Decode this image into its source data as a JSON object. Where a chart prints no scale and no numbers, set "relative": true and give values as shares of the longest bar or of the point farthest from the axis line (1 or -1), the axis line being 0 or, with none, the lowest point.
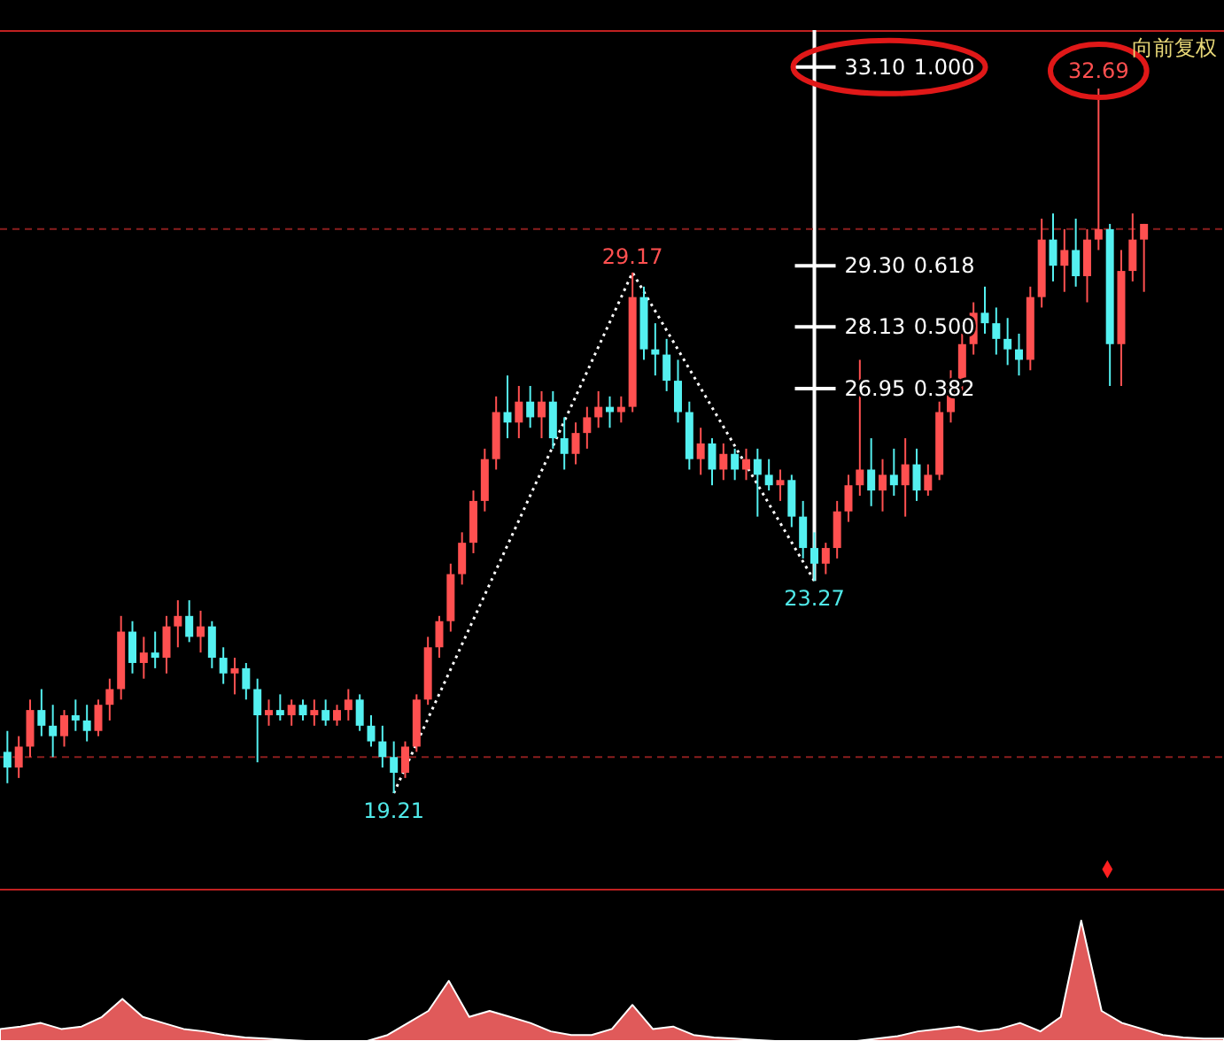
{
  "chart_data": [
    {
      "type": "candlestick",
      "categories": [
        null,
        null,
        null,
        null,
        null,
        null,
        null,
        null,
        null,
        null,
        null,
        null,
        null,
        null,
        null,
        null,
        null,
        null,
        null,
        null,
        null,
        null,
        null,
        null,
        null,
        null,
        null,
        null,
        null,
        null,
        null,
        null,
        null,
        null,
        null,
        null,
        null,
        null,
        null,
        null,
        null,
        null,
        null,
        null,
        null,
        null,
        null,
        null,
        null,
        null,
        null,
        null,
        null,
        null,
        null,
        null,
        null,
        null,
        null,
        null,
        null,
        null,
        null,
        null,
        null,
        null,
        null,
        null,
        null,
        null,
        null,
        null,
        null,
        null,
        null,
        null,
        null,
        null,
        null,
        null,
        null,
        null,
        null,
        null,
        null,
        null,
        null,
        null,
        null,
        null,
        null,
        null,
        null,
        null,
        null,
        null,
        null,
        null,
        null,
        null,
        null
      ],
      "ohlc": [
        [
          20.0,
          20.4,
          19.4,
          19.7
        ],
        [
          19.7,
          20.3,
          19.5,
          20.1
        ],
        [
          20.1,
          21.0,
          19.9,
          20.8
        ],
        [
          20.8,
          21.2,
          20.3,
          20.5
        ],
        [
          20.5,
          20.9,
          19.9,
          20.3
        ],
        [
          20.3,
          20.8,
          20.1,
          20.7
        ],
        [
          20.7,
          21.0,
          20.4,
          20.6
        ],
        [
          20.6,
          20.9,
          20.2,
          20.4
        ],
        [
          20.4,
          21.0,
          20.3,
          20.9
        ],
        [
          20.9,
          21.4,
          20.6,
          21.2
        ],
        [
          21.2,
          22.6,
          21.0,
          22.3
        ],
        [
          22.3,
          22.5,
          21.5,
          21.7
        ],
        [
          21.7,
          22.2,
          21.4,
          21.9
        ],
        [
          21.9,
          22.3,
          21.6,
          21.8
        ],
        [
          21.8,
          22.6,
          21.5,
          22.4
        ],
        [
          22.4,
          22.9,
          22.0,
          22.6
        ],
        [
          22.6,
          22.9,
          22.1,
          22.2
        ],
        [
          22.2,
          22.7,
          21.9,
          22.4
        ],
        [
          22.4,
          22.5,
          21.6,
          21.8
        ],
        [
          21.8,
          22.0,
          21.3,
          21.5
        ],
        [
          21.5,
          21.8,
          21.1,
          21.6
        ],
        [
          21.6,
          21.7,
          21.0,
          21.2
        ],
        [
          21.2,
          21.4,
          19.8,
          20.7
        ],
        [
          20.7,
          21.0,
          20.5,
          20.8
        ],
        [
          20.8,
          21.1,
          20.6,
          20.7
        ],
        [
          20.7,
          21.0,
          20.5,
          20.9
        ],
        [
          20.9,
          21.0,
          20.6,
          20.7
        ],
        [
          20.7,
          21.0,
          20.5,
          20.8
        ],
        [
          20.8,
          21.0,
          20.5,
          20.6
        ],
        [
          20.6,
          20.9,
          20.5,
          20.8
        ],
        [
          20.8,
          21.2,
          20.6,
          21.0
        ],
        [
          21.0,
          21.1,
          20.4,
          20.5
        ],
        [
          20.5,
          20.7,
          20.1,
          20.2
        ],
        [
          20.2,
          20.5,
          19.7,
          19.9
        ],
        [
          19.9,
          20.2,
          19.21,
          19.6
        ],
        [
          19.6,
          20.2,
          19.5,
          20.1
        ],
        [
          20.1,
          21.1,
          20.0,
          21.0
        ],
        [
          21.0,
          22.2,
          20.9,
          22.0
        ],
        [
          22.0,
          22.6,
          21.8,
          22.5
        ],
        [
          22.5,
          23.6,
          22.3,
          23.4
        ],
        [
          23.4,
          24.2,
          23.2,
          24.0
        ],
        [
          24.0,
          25.0,
          23.8,
          24.8
        ],
        [
          24.8,
          25.8,
          24.6,
          25.6
        ],
        [
          25.6,
          26.8,
          25.4,
          26.5
        ],
        [
          26.5,
          27.2,
          26.0,
          26.3
        ],
        [
          26.3,
          27.0,
          26.0,
          26.7
        ],
        [
          26.7,
          27.0,
          26.2,
          26.4
        ],
        [
          26.4,
          26.9,
          26.0,
          26.7
        ],
        [
          26.7,
          26.9,
          25.8,
          26.0
        ],
        [
          26.0,
          26.4,
          25.4,
          25.7
        ],
        [
          25.7,
          26.3,
          25.5,
          26.1
        ],
        [
          26.1,
          26.6,
          25.8,
          26.4
        ],
        [
          26.4,
          26.9,
          26.2,
          26.6
        ],
        [
          26.6,
          26.8,
          26.2,
          26.5
        ],
        [
          26.5,
          26.8,
          26.3,
          26.6
        ],
        [
          26.6,
          29.17,
          26.5,
          28.7
        ],
        [
          28.7,
          28.9,
          27.5,
          27.7
        ],
        [
          27.7,
          28.2,
          27.2,
          27.6
        ],
        [
          27.6,
          27.9,
          26.9,
          27.1
        ],
        [
          27.1,
          27.5,
          26.3,
          26.5
        ],
        [
          26.5,
          26.7,
          25.4,
          25.6
        ],
        [
          25.6,
          26.2,
          25.3,
          25.9
        ],
        [
          25.9,
          26.0,
          25.1,
          25.4
        ],
        [
          25.4,
          25.9,
          25.2,
          25.7
        ],
        [
          25.7,
          25.8,
          25.2,
          25.4
        ],
        [
          25.4,
          25.8,
          25.2,
          25.6
        ],
        [
          25.6,
          25.8,
          24.5,
          25.3
        ],
        [
          25.3,
          25.6,
          25.0,
          25.1
        ],
        [
          25.1,
          25.4,
          24.8,
          25.2
        ],
        [
          25.2,
          25.3,
          24.3,
          24.5
        ],
        [
          24.5,
          24.8,
          23.7,
          23.9
        ],
        [
          23.9,
          24.2,
          23.27,
          23.6
        ],
        [
          23.6,
          24.0,
          23.4,
          23.9
        ],
        [
          23.9,
          24.8,
          23.7,
          24.6
        ],
        [
          24.6,
          25.3,
          24.4,
          25.1
        ],
        [
          25.1,
          27.5,
          24.9,
          25.4
        ],
        [
          25.4,
          26.0,
          24.7,
          25.0
        ],
        [
          25.0,
          25.6,
          24.6,
          25.3
        ],
        [
          25.3,
          25.8,
          24.9,
          25.1
        ],
        [
          25.1,
          26.0,
          24.5,
          25.5
        ],
        [
          25.5,
          25.8,
          24.8,
          25.0
        ],
        [
          25.0,
          25.5,
          24.9,
          25.3
        ],
        [
          25.3,
          26.7,
          25.2,
          26.5
        ],
        [
          26.5,
          27.3,
          26.3,
          27.1
        ],
        [
          27.1,
          28.0,
          26.9,
          27.8
        ],
        [
          27.8,
          28.6,
          27.6,
          28.4
        ],
        [
          28.4,
          28.9,
          28.0,
          28.2
        ],
        [
          28.2,
          28.5,
          27.6,
          27.9
        ],
        [
          27.9,
          28.3,
          27.4,
          27.7
        ],
        [
          27.7,
          28.0,
          27.2,
          27.5
        ],
        [
          27.5,
          28.9,
          27.3,
          28.7
        ],
        [
          28.7,
          30.2,
          28.5,
          29.8
        ],
        [
          29.8,
          30.3,
          29.0,
          29.3
        ],
        [
          29.3,
          30.0,
          28.8,
          29.6
        ],
        [
          29.6,
          30.2,
          28.9,
          29.1
        ],
        [
          29.1,
          30.0,
          28.6,
          29.8
        ],
        [
          29.8,
          32.69,
          29.6,
          30.0
        ],
        [
          30.0,
          30.1,
          27.0,
          27.8
        ],
        [
          27.8,
          29.6,
          27.0,
          29.2
        ],
        [
          29.2,
          30.3,
          29.0,
          29.8
        ],
        [
          29.8,
          30.1,
          28.8,
          30.1
        ]
      ],
      "series": [
        {
          "type": "line",
          "color": "#ffffff",
          "line_style": "dotted",
          "values": [
            null,
            null,
            null,
            null,
            null,
            null,
            null,
            null,
            null,
            null,
            null,
            null,
            null,
            null,
            null,
            null,
            null,
            null,
            null,
            null,
            null,
            null,
            null,
            null,
            null,
            null,
            null,
            null,
            null,
            null,
            null,
            null,
            null,
            null,
            19.21,
            null,
            null,
            null,
            null,
            null,
            null,
            null,
            null,
            null,
            null,
            null,
            null,
            null,
            null,
            null,
            null,
            null,
            null,
            null,
            null,
            29.17,
            null,
            null,
            null,
            null,
            null,
            null,
            null,
            null,
            null,
            null,
            null,
            null,
            null,
            null,
            null,
            23.27,
            null,
            null,
            null,
            null,
            null,
            null,
            null,
            null,
            null,
            null,
            null,
            null,
            null,
            null,
            null,
            null,
            null,
            null,
            null,
            null,
            null,
            null,
            null,
            null,
            null,
            null,
            null,
            null,
            null
          ],
          "value_labels": [
            null,
            null,
            null,
            null,
            null,
            null,
            null,
            null,
            null,
            null,
            null,
            null,
            null,
            null,
            null,
            null,
            null,
            null,
            null,
            null,
            null,
            null,
            null,
            null,
            null,
            null,
            null,
            null,
            null,
            null,
            null,
            null,
            null,
            null,
            "19.21",
            null,
            null,
            null,
            null,
            null,
            null,
            null,
            null,
            null,
            null,
            null,
            null,
            null,
            null,
            null,
            null,
            null,
            null,
            null,
            null,
            "29.17",
            null,
            null,
            null,
            null,
            null,
            null,
            null,
            null,
            null,
            null,
            null,
            null,
            null,
            null,
            null,
            "23.27",
            null,
            null,
            null,
            null,
            null,
            null,
            null,
            null,
            null,
            null,
            null,
            null,
            null,
            null,
            null,
            null,
            null,
            null,
            null,
            null,
            null,
            null,
            null,
            null,
            null,
            null,
            null,
            null,
            null
          ]
        }
      ],
      "ref_lines": [
        {
          "axis": "y",
          "value": 33.1,
          "label": "33.10 1.000",
          "color": "#ffffff"
        },
        {
          "axis": "y",
          "value": 29.3,
          "label": "29.30 0.618",
          "color": "#ffffff"
        },
        {
          "axis": "y",
          "value": 28.13,
          "label": "28.13 0.500",
          "color": "#ffffff"
        },
        {
          "axis": "y",
          "value": 26.95,
          "label": "26.95 0.382",
          "color": "#ffffff"
        },
        {
          "axis": "y",
          "value": 30.0,
          "color": "#8b1e1e",
          "line_style": "dashed"
        },
        {
          "axis": "y",
          "value": 19.9,
          "color": "#8b1e1e",
          "line_style": "dashed"
        }
      ],
      "annotations": [
        {
          "text": "32.69",
          "y": 32.69
        },
        "向前复权"
      ]
    },
    {
      "type": "area",
      "relative": true,
      "color": "#e05a5a",
      "categories": [
        null,
        null,
        null,
        null,
        null,
        null,
        null,
        null,
        null,
        null,
        null,
        null,
        null,
        null,
        null,
        null,
        null,
        null,
        null,
        null,
        null,
        null,
        null,
        null,
        null,
        null,
        null,
        null,
        null,
        null,
        null,
        null,
        null,
        null,
        null,
        null,
        null,
        null,
        null,
        null,
        null,
        null,
        null,
        null,
        null,
        null,
        null,
        null,
        null,
        null,
        null,
        null,
        null,
        null,
        null,
        null,
        null,
        null,
        null,
        null,
        null
      ],
      "values": [
        0.1,
        0.12,
        0.15,
        0.1,
        0.12,
        0.2,
        0.35,
        0.2,
        0.15,
        0.1,
        0.08,
        0.05,
        0.03,
        0.02,
        0.01,
        0,
        0,
        0,
        0,
        0.05,
        0.15,
        0.25,
        0.5,
        0.2,
        0.25,
        0.2,
        0.15,
        0.08,
        0.05,
        0.05,
        0.1,
        0.3,
        0.1,
        0.12,
        0.05,
        0.03,
        0.02,
        0.01,
        0,
        0,
        0,
        0,
        0,
        0.02,
        0.04,
        0.08,
        0.1,
        0.12,
        0.08,
        0.1,
        0.15,
        0.08,
        0.2,
        1,
        0.25,
        0.15,
        0.1,
        0.05,
        0.03,
        0.02,
        0.02
      ]
    }
  ]
}
